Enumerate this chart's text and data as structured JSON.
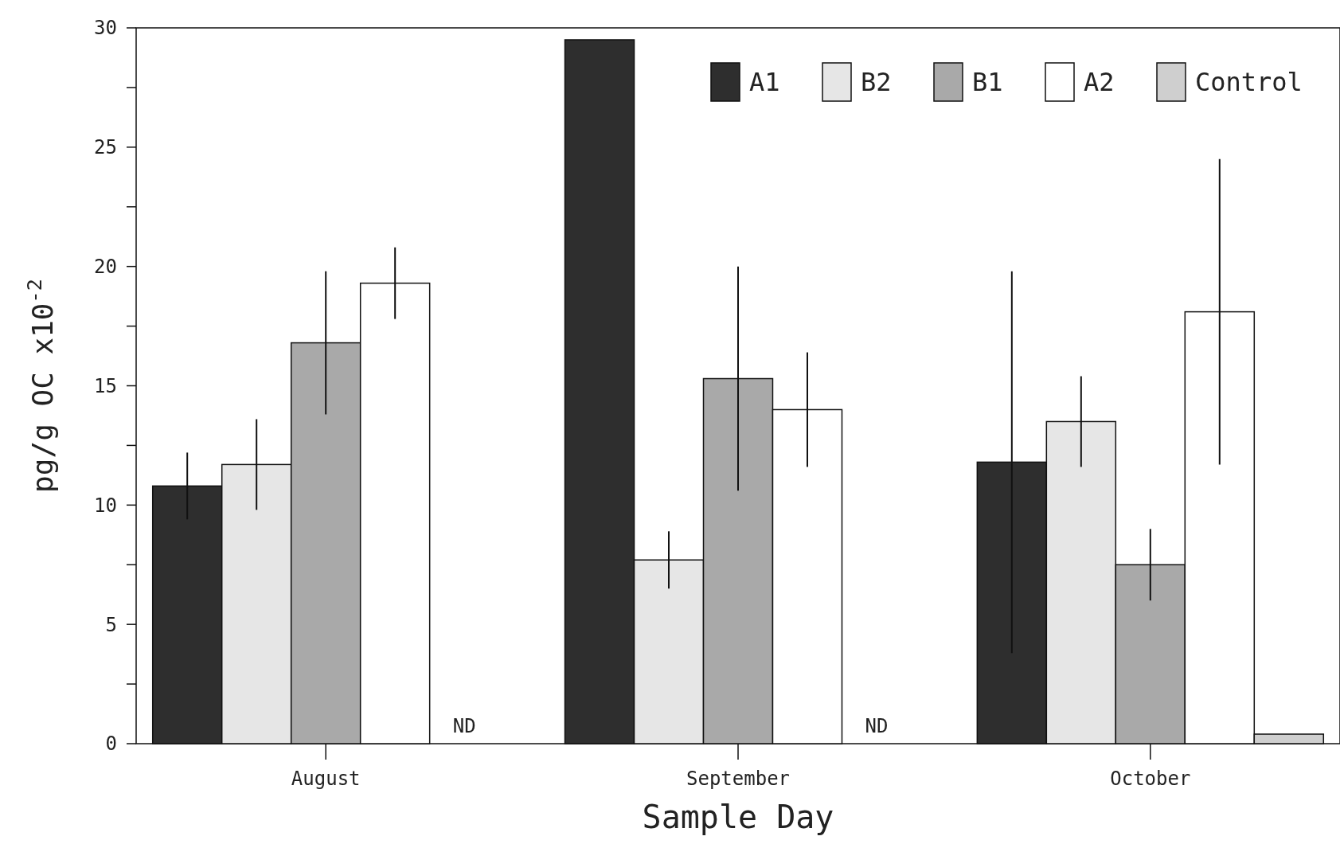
{
  "chart_data": {
    "type": "bar",
    "xlabel": "Sample Day",
    "ylabel": "pg/g OC x10$^{-2}$",
    "categories": [
      "August",
      "September",
      "October"
    ],
    "series": [
      {
        "name": "A1",
        "color": "#2e2e2e",
        "values": [
          10.8,
          29.5,
          11.8
        ],
        "errors": [
          1.4,
          null,
          8
        ]
      },
      {
        "name": "B2",
        "color": "#e6e6e6",
        "values": [
          11.7,
          7.7,
          13.5
        ],
        "errors": [
          1.9,
          1.2,
          1.9
        ]
      },
      {
        "name": "B1",
        "color": "#a9a9a9",
        "values": [
          16.8,
          15.3,
          7.5
        ],
        "errors": [
          3,
          4.7,
          1.5
        ]
      },
      {
        "name": "A2",
        "color": "#ffffff",
        "values": [
          19.3,
          14,
          18.1
        ],
        "errors": [
          1.5,
          2.4,
          6.4
        ]
      },
      {
        "name": "Control",
        "color": "#cfcfcf",
        "values": [
          null,
          null,
          0.4
        ]
      }
    ],
    "ylim": [
      0,
      30
    ],
    "yticks": [
      0,
      {
        "value": 2.5,
        "label": null
      },
      5,
      {
        "value": 7.5,
        "label": null
      },
      10,
      {
        "value": 12.5,
        "label": null
      },
      15,
      {
        "value": 17.5,
        "label": null
      },
      20,
      {
        "value": 22.5,
        "label": null
      },
      25,
      {
        "value": 27.5,
        "label": null
      },
      30
    ],
    "annotations": [
      "ND",
      "ND"
    ],
    "legend": "top right",
    "grid": false
  }
}
